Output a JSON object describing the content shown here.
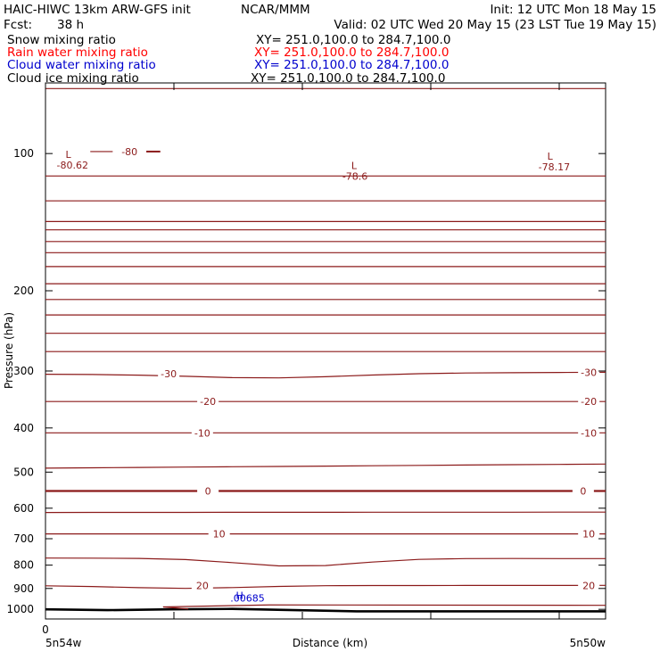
{
  "header": {
    "model": "HAIC-HIWC 13km ARW-GFS init",
    "org": "NCAR/MMM",
    "init": "Init: 12 UTC Mon 18 May 15",
    "fcst_label": "Fcst:",
    "fcst_value": "38 h",
    "valid": "Valid: 02 UTC Wed 20 May 15 (23 LST Tue 19 May 15)"
  },
  "legend": [
    {
      "name": "Snow mixing ratio",
      "xy": "XY= 251.0,100.0 to 284.7,100.0",
      "color": "#000000"
    },
    {
      "name": "Rain water mixing ratio",
      "xy": "XY= 251.0,100.0 to 284.7,100.0",
      "color": "#ff0000"
    },
    {
      "name": "Cloud water mixing ratio",
      "xy": "XY= 251.0,100.0 to 284.7,100.0",
      "color": "#0000cd"
    },
    {
      "name": "Cloud ice mixing ratio",
      "xy": "XY= 251.0,100.0 to 284.7,100.0",
      "color": "#000000"
    }
  ],
  "axes": {
    "ylabel": "Pressure (hPa)",
    "xlabel": "Distance (km)",
    "x_tick_zero": "0",
    "x_left": "5n54w",
    "x_right": "5n50w"
  },
  "colors": {
    "contour": "#8b1a1a",
    "cloud_water": "#0000cd",
    "terrain": "#000000"
  },
  "chart_data": {
    "type": "line",
    "subtype": "vertical cross-section contour plot",
    "yscale": "log",
    "ylim": [
      1050,
      70
    ],
    "xlim": [
      0,
      1
    ],
    "y_ticks": [
      100,
      200,
      300,
      400,
      500,
      600,
      700,
      800,
      900,
      1000
    ],
    "contour_lines": [
      {
        "pressure_left": 72,
        "pressure_right": 72
      },
      {
        "pressure_left": 112,
        "pressure_right": 112
      },
      {
        "pressure_left": 127,
        "pressure_right": 127
      },
      {
        "pressure_left": 141,
        "pressure_right": 141
      },
      {
        "pressure_left": 147,
        "pressure_right": 147
      },
      {
        "pressure_left": 156,
        "pressure_right": 156
      },
      {
        "pressure_left": 165,
        "pressure_right": 165
      },
      {
        "pressure_left": 177,
        "pressure_right": 177
      },
      {
        "pressure_left": 193,
        "pressure_right": 193
      },
      {
        "pressure_left": 209,
        "pressure_right": 209
      },
      {
        "pressure_left": 226,
        "pressure_right": 226
      },
      {
        "pressure_left": 248,
        "pressure_right": 248
      },
      {
        "pressure_left": 272,
        "pressure_right": 272
      },
      {
        "pressure_left": 305,
        "pressure_right": 302,
        "label": "-30"
      },
      {
        "pressure_left": 350,
        "pressure_right": 350,
        "label": "-20"
      },
      {
        "pressure_left": 410,
        "pressure_right": 410,
        "label": "-10"
      },
      {
        "pressure_left": 490,
        "pressure_right": 480
      },
      {
        "pressure_left": 550,
        "pressure_right": 550,
        "label": "0",
        "bold": true
      },
      {
        "pressure_left": 613,
        "pressure_right": 612
      },
      {
        "pressure_left": 683,
        "pressure_right": 683,
        "label": "10"
      },
      {
        "pressure_left": 772,
        "pressure_right": 774
      },
      {
        "pressure_left": 888,
        "pressure_right": 886,
        "label": "20"
      }
    ],
    "contour_labels": [
      "-80.62",
      "-80",
      "-78.6",
      "-78.17",
      "-30",
      "-20",
      "-10",
      "0",
      "10",
      "20"
    ],
    "extrema": [
      {
        "type": "L",
        "value": "-80.62"
      },
      {
        "type": "L",
        "value": "-78.6"
      },
      {
        "type": "L",
        "value": "-78.17"
      },
      {
        "type": "H",
        "value": ".00685"
      }
    ],
    "terrain_pressure": [
      1000,
      1004,
      1000,
      998,
      1004,
      1010,
      1010,
      1010,
      1010,
      1010
    ]
  }
}
